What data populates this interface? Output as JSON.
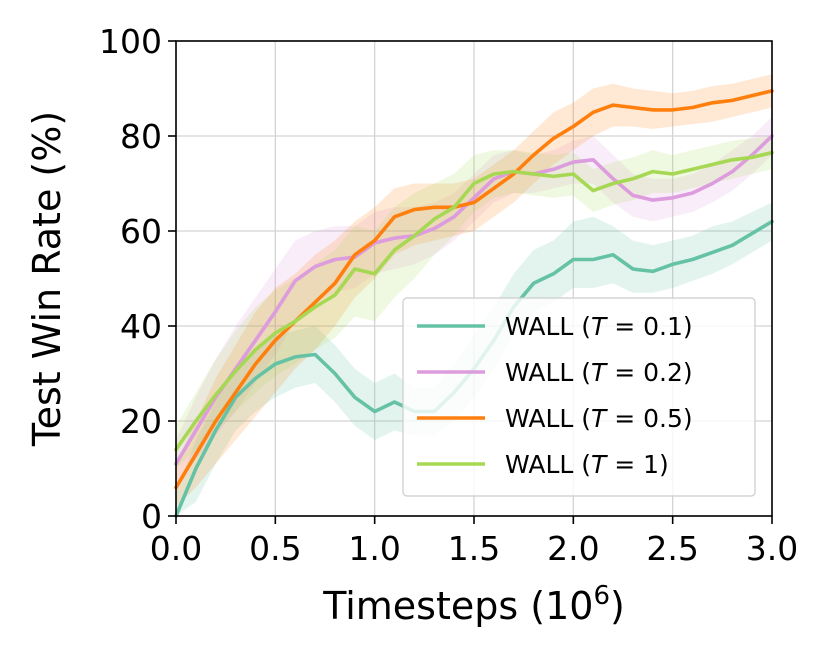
{
  "chart_data": {
    "type": "line",
    "title": "",
    "xlabel": "Timesteps (10",
    "xlabel_exponent": "6",
    "xlabel_suffix": ")",
    "ylabel": "Test Win Rate (%)",
    "xlim": [
      0,
      3
    ],
    "ylim": [
      0,
      100
    ],
    "xticks": [
      "0.0",
      "0.5",
      "1.0",
      "1.5",
      "2.0",
      "2.5",
      "3.0"
    ],
    "yticks": [
      "0",
      "20",
      "40",
      "60",
      "80",
      "100"
    ],
    "grid": true,
    "legend_position": "lower-right",
    "x": [
      0.0,
      0.1,
      0.2,
      0.3,
      0.4,
      0.5,
      0.6,
      0.7,
      0.8,
      0.9,
      1.0,
      1.1,
      1.2,
      1.3,
      1.4,
      1.5,
      1.6,
      1.7,
      1.8,
      1.9,
      2.0,
      2.1,
      2.2,
      2.3,
      2.4,
      2.5,
      2.6,
      2.7,
      2.8,
      2.9,
      3.0
    ],
    "series": [
      {
        "name_prefix": "WALL (",
        "name_var": "T",
        "name_suffix": " = 0.1)",
        "color": "#66c2a5",
        "values": [
          0,
          10,
          18,
          25,
          29,
          32,
          33.5,
          34,
          30,
          25,
          22,
          24,
          22,
          22,
          26,
          31,
          37,
          44,
          49,
          51,
          54,
          54,
          55,
          52,
          51.5,
          53,
          54,
          55.5,
          57,
          59.5,
          62
        ],
        "lower": [
          0,
          3,
          11,
          18,
          22,
          25,
          27,
          28,
          24,
          19,
          16,
          18,
          17,
          17,
          20,
          25,
          31,
          38,
          43,
          45,
          48,
          48,
          49,
          47,
          47,
          48,
          49.5,
          51,
          53,
          55.5,
          58
        ],
        "upper": [
          5,
          16,
          24,
          31,
          35,
          38,
          39,
          40,
          36,
          31,
          28,
          30,
          27,
          27,
          32,
          38,
          44,
          51,
          56,
          58,
          62,
          63,
          61,
          58,
          57,
          58,
          59,
          61,
          62,
          64,
          66
        ]
      },
      {
        "name_prefix": "WALL (",
        "name_var": "T",
        "name_suffix": " = 0.2)",
        "color": "#dc9cdd",
        "values": [
          11,
          18,
          25,
          31,
          37,
          43,
          49.5,
          52.5,
          54,
          54.5,
          57.5,
          58.5,
          59,
          60.5,
          63,
          67,
          71,
          72.5,
          72,
          73,
          74.5,
          75,
          71,
          67.5,
          66.5,
          67,
          68,
          70,
          72.5,
          76,
          80
        ],
        "lower": [
          7,
          12,
          17,
          22,
          28,
          34,
          41,
          45,
          47,
          48,
          51,
          52,
          53,
          55,
          58,
          62,
          66,
          68,
          68,
          69,
          70,
          70,
          66,
          63,
          62,
          63,
          64,
          66,
          68.5,
          72,
          76
        ],
        "upper": [
          16,
          25,
          33,
          40,
          46,
          52,
          58,
          60,
          61,
          61,
          64,
          65,
          65,
          66,
          68,
          72,
          76,
          77,
          76,
          77,
          79,
          80,
          76,
          72,
          71,
          71,
          72,
          74,
          77,
          80,
          84
        ]
      },
      {
        "name_prefix": "WALL (",
        "name_var": "T",
        "name_suffix": " = 0.5)",
        "color": "#ff7f0e",
        "values": [
          6,
          13,
          20,
          26,
          32,
          37,
          41,
          45,
          49,
          55,
          58,
          63,
          64.5,
          65,
          65,
          66,
          69,
          72,
          76,
          79.5,
          82,
          85,
          86.5,
          86,
          85.5,
          85.5,
          86,
          87,
          87.5,
          88.5,
          89.5
        ],
        "lower": [
          2,
          6,
          11,
          16,
          21,
          26,
          31,
          35,
          40,
          46,
          50,
          55,
          57,
          58,
          59,
          60,
          63,
          66,
          70,
          74,
          77,
          80,
          82,
          82,
          81.5,
          82,
          82.5,
          83,
          84,
          85,
          86
        ],
        "upper": [
          11,
          20,
          29,
          36,
          43,
          48,
          51,
          55,
          58,
          62,
          65,
          69,
          70,
          70,
          70,
          71,
          74,
          77,
          81,
          85,
          87,
          90,
          91,
          90,
          89.5,
          89,
          89.5,
          90.5,
          91,
          92,
          93
        ]
      },
      {
        "name_prefix": "WALL (",
        "name_var": "T",
        "name_suffix": " = 1)",
        "color": "#a6d854",
        "values": [
          14,
          20,
          25.5,
          30.5,
          35,
          38.5,
          41,
          44,
          46.5,
          52,
          51,
          56,
          59,
          62.5,
          65,
          70,
          72,
          72.5,
          72,
          71.5,
          72,
          68.5,
          70,
          71,
          72.5,
          72,
          73,
          74,
          75,
          75.5,
          76.5
        ],
        "lower": [
          10,
          14,
          18,
          22,
          26,
          29.5,
          32,
          35,
          37.5,
          42,
          41,
          46,
          50,
          55,
          59,
          64,
          67,
          68,
          67.5,
          67,
          67.5,
          64,
          65.5,
          66.5,
          68,
          68,
          69,
          70,
          71,
          72,
          73
        ],
        "upper": [
          19,
          26,
          33,
          39,
          44,
          47.5,
          50,
          53,
          56,
          61,
          60,
          65,
          68,
          70,
          72,
          76,
          77,
          77,
          76.5,
          76,
          76.5,
          73,
          74.5,
          75.5,
          77,
          76,
          77,
          78,
          79,
          79.5,
          80
        ]
      }
    ]
  }
}
